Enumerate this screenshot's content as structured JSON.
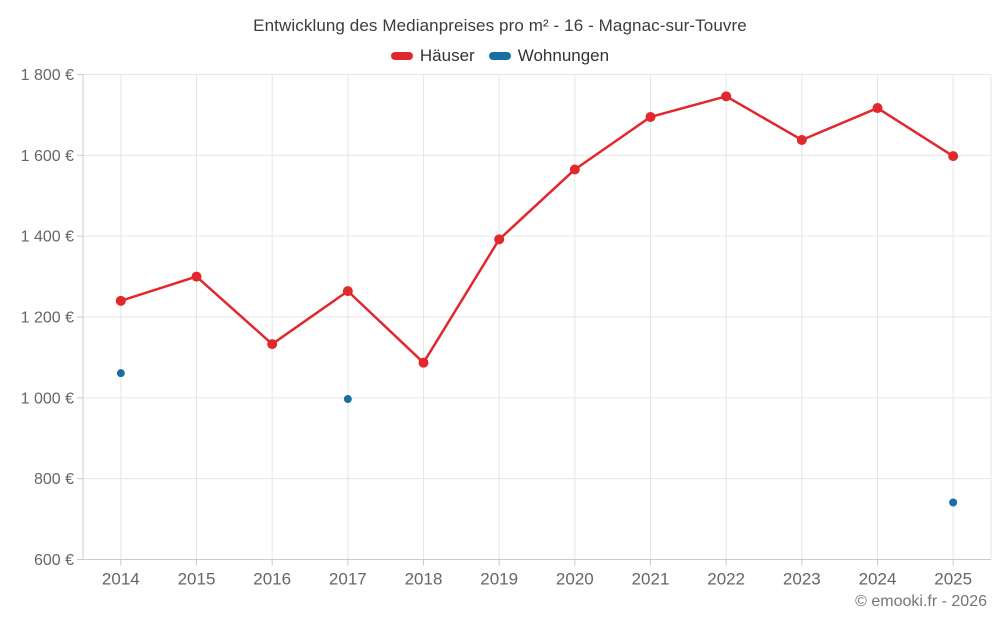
{
  "header": {
    "title": "Entwicklung des Medianpreises pro m² - 16 - Magnac-sur-Touvre"
  },
  "legend": {
    "items": [
      {
        "label": "Häuser",
        "color": "#e0282d"
      },
      {
        "label": "Wohnungen",
        "color": "#176fa3"
      }
    ]
  },
  "footer": {
    "copyright": "© emooki.fr - 2026"
  },
  "chart_data": {
    "type": "line",
    "title": "Entwicklung des Medianpreises pro m² - 16 - Magnac-sur-Touvre",
    "categories": [
      "2014",
      "2015",
      "2016",
      "2017",
      "2018",
      "2019",
      "2020",
      "2021",
      "2022",
      "2023",
      "2024",
      "2025"
    ],
    "series": [
      {
        "name": "Häuser",
        "color": "#e0282d",
        "marker_radius": 5,
        "line_width": 2.5,
        "values": [
          1240,
          1300,
          1133,
          1264,
          1087,
          1392,
          1565,
          1695,
          1746,
          1638,
          1717,
          1598
        ]
      },
      {
        "name": "Wohnungen",
        "color": "#176fa3",
        "marker_radius": 4,
        "line_width": 2.5,
        "values": [
          1061,
          null,
          null,
          997,
          null,
          null,
          null,
          null,
          null,
          null,
          null,
          741
        ]
      }
    ],
    "ylim": [
      600,
      1800
    ],
    "y_ticks": [
      600,
      800,
      1000,
      1200,
      1400,
      1600,
      1800
    ],
    "y_tick_labels": [
      "600 €",
      "800 €",
      "1 000 €",
      "1 200 €",
      "1 400 €",
      "1 600 €",
      "1 800 €"
    ],
    "unit": "€",
    "grid": true,
    "legend_position": "top"
  },
  "colors": {
    "grid": "#e6e6e6",
    "axis": "#cccccc",
    "tick": "#cccccc",
    "tick_label": "#666666",
    "title": "#3c3c3c",
    "legend_text": "#333333",
    "footer": "#757575",
    "background": "#ffffff"
  }
}
